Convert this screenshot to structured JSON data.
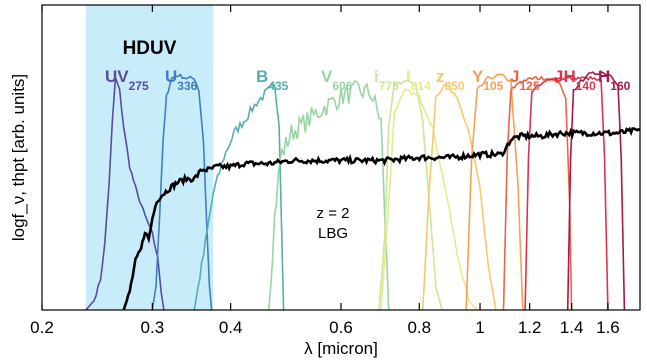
{
  "chart_data": {
    "type": "line",
    "xlabel": "λ [micron]",
    "ylabel": "logf_ν, thpt [arb. units]",
    "xscale": "log",
    "xlim": [
      0.2,
      1.8
    ],
    "ylim": [
      0,
      1
    ],
    "grid": false,
    "xticks": [
      {
        "value": 0.2,
        "label": "0.2"
      },
      {
        "value": 0.3,
        "label": "0.3"
      },
      {
        "value": 0.4,
        "label": "0.4"
      },
      {
        "value": 0.6,
        "label": "0.6"
      },
      {
        "value": 0.8,
        "label": "0.8"
      },
      {
        "value": 1.0,
        "label": "1"
      },
      {
        "value": 1.2,
        "label": "1.2"
      },
      {
        "value": 1.4,
        "label": "1.4"
      },
      {
        "value": 1.6,
        "label": "1.6"
      }
    ],
    "highlight_region": {
      "label": "HDUV",
      "x_range": [
        0.235,
        0.375
      ],
      "color": "#c8ecfa"
    },
    "filters": [
      {
        "label": "UV",
        "sub": "275",
        "color": "#5b4b9e",
        "curve": [
          [
            0.235,
            0.0
          ],
          [
            0.242,
            0.03
          ],
          [
            0.248,
            0.1
          ],
          [
            0.252,
            0.22
          ],
          [
            0.256,
            0.42
          ],
          [
            0.259,
            0.62
          ],
          [
            0.262,
            0.76
          ],
          [
            0.266,
            0.72
          ],
          [
            0.27,
            0.6
          ],
          [
            0.276,
            0.47
          ],
          [
            0.284,
            0.38
          ],
          [
            0.292,
            0.31
          ],
          [
            0.3,
            0.25
          ],
          [
            0.306,
            0.17
          ],
          [
            0.31,
            0.06
          ],
          [
            0.313,
            0.0
          ]
        ]
      },
      {
        "label": "U",
        "sub": "336",
        "color": "#3f7fbf",
        "curve": [
          [
            0.3,
            0.0
          ],
          [
            0.304,
            0.08
          ],
          [
            0.308,
            0.3
          ],
          [
            0.312,
            0.55
          ],
          [
            0.316,
            0.7
          ],
          [
            0.322,
            0.76
          ],
          [
            0.33,
            0.77
          ],
          [
            0.34,
            0.76
          ],
          [
            0.35,
            0.76
          ],
          [
            0.356,
            0.72
          ],
          [
            0.362,
            0.55
          ],
          [
            0.366,
            0.3
          ],
          [
            0.37,
            0.08
          ],
          [
            0.373,
            0.0
          ]
        ]
      },
      {
        "label": "B",
        "sub": "435",
        "color": "#55aeb0",
        "curve": [
          [
            0.35,
            0.0
          ],
          [
            0.362,
            0.18
          ],
          [
            0.375,
            0.38
          ],
          [
            0.39,
            0.5
          ],
          [
            0.405,
            0.58
          ],
          [
            0.42,
            0.62
          ],
          [
            0.44,
            0.68
          ],
          [
            0.46,
            0.72
          ],
          [
            0.47,
            0.73
          ],
          [
            0.478,
            0.62
          ],
          [
            0.482,
            0.3
          ],
          [
            0.486,
            0.0
          ]
        ]
      },
      {
        "label": "V",
        "sub": "606",
        "color": "#99d5a4",
        "curve": [
          [
            0.46,
            0.0
          ],
          [
            0.47,
            0.3
          ],
          [
            0.48,
            0.5
          ],
          [
            0.5,
            0.58
          ],
          [
            0.53,
            0.62
          ],
          [
            0.56,
            0.66
          ],
          [
            0.6,
            0.7
          ],
          [
            0.64,
            0.72
          ],
          [
            0.67,
            0.71
          ],
          [
            0.695,
            0.62
          ],
          [
            0.705,
            0.3
          ],
          [
            0.715,
            0.0
          ]
        ]
      },
      {
        "label": "i",
        "sub": "775",
        "color": "#c8e89a",
        "curve": [
          [
            0.69,
            0.0
          ],
          [
            0.705,
            0.25
          ],
          [
            0.715,
            0.6
          ],
          [
            0.73,
            0.74
          ],
          [
            0.76,
            0.75
          ],
          [
            0.79,
            0.74
          ],
          [
            0.81,
            0.62
          ],
          [
            0.83,
            0.35
          ],
          [
            0.85,
            0.08
          ],
          [
            0.87,
            0.0
          ]
        ]
      },
      {
        "label": "I",
        "sub": "814",
        "color": "#e7ea8c",
        "curve": [
          [
            0.695,
            0.0
          ],
          [
            0.715,
            0.35
          ],
          [
            0.73,
            0.65
          ],
          [
            0.76,
            0.72
          ],
          [
            0.8,
            0.7
          ],
          [
            0.84,
            0.6
          ],
          [
            0.88,
            0.4
          ],
          [
            0.92,
            0.18
          ],
          [
            0.96,
            0.03
          ],
          [
            0.99,
            0.0
          ]
        ]
      },
      {
        "label": "z",
        "sub": "850",
        "color": "#f6c96c",
        "curve": [
          [
            0.81,
            0.0
          ],
          [
            0.83,
            0.4
          ],
          [
            0.85,
            0.7
          ],
          [
            0.88,
            0.74
          ],
          [
            0.92,
            0.7
          ],
          [
            0.96,
            0.58
          ],
          [
            1.0,
            0.4
          ],
          [
            1.03,
            0.15
          ],
          [
            1.06,
            0.0
          ]
        ]
      },
      {
        "label": "Y",
        "sub": "105",
        "color": "#f1a25a",
        "curve": [
          [
            0.95,
            0.0
          ],
          [
            0.97,
            0.5
          ],
          [
            0.99,
            0.72
          ],
          [
            1.03,
            0.76
          ],
          [
            1.08,
            0.77
          ],
          [
            1.12,
            0.75
          ],
          [
            1.15,
            0.4
          ],
          [
            1.17,
            0.0
          ]
        ]
      },
      {
        "label": "J",
        "sub": "125",
        "color": "#e8674a",
        "curve": [
          [
            1.09,
            0.0
          ],
          [
            1.105,
            0.5
          ],
          [
            1.12,
            0.72
          ],
          [
            1.16,
            0.75
          ],
          [
            1.22,
            0.76
          ],
          [
            1.28,
            0.76
          ],
          [
            1.33,
            0.75
          ],
          [
            1.37,
            0.7
          ],
          [
            1.39,
            0.35
          ],
          [
            1.4,
            0.0
          ]
        ]
      },
      {
        "label": "JH",
        "sub": "140",
        "color": "#d7354f",
        "curve": [
          [
            1.18,
            0.0
          ],
          [
            1.195,
            0.5
          ],
          [
            1.21,
            0.72
          ],
          [
            1.3,
            0.76
          ],
          [
            1.4,
            0.76
          ],
          [
            1.5,
            0.76
          ],
          [
            1.56,
            0.75
          ],
          [
            1.58,
            0.5
          ],
          [
            1.6,
            0.0
          ]
        ]
      },
      {
        "label": "H",
        "sub": "160",
        "color": "#a8174e",
        "curve": [
          [
            1.38,
            0.0
          ],
          [
            1.395,
            0.5
          ],
          [
            1.41,
            0.72
          ],
          [
            1.48,
            0.77
          ],
          [
            1.56,
            0.78
          ],
          [
            1.62,
            0.77
          ],
          [
            1.66,
            0.74
          ],
          [
            1.68,
            0.5
          ],
          [
            1.7,
            0.0
          ]
        ]
      }
    ],
    "sed": {
      "annotation": [
        "z = 2",
        "LBG"
      ],
      "color": "#000000",
      "curve": [
        [
          0.27,
          0.0
        ],
        [
          0.276,
          0.06
        ],
        [
          0.282,
          0.16
        ],
        [
          0.288,
          0.2
        ],
        [
          0.292,
          0.26
        ],
        [
          0.296,
          0.23
        ],
        [
          0.3,
          0.3
        ],
        [
          0.305,
          0.36
        ],
        [
          0.312,
          0.38
        ],
        [
          0.32,
          0.4
        ],
        [
          0.33,
          0.42
        ],
        [
          0.34,
          0.43
        ],
        [
          0.35,
          0.43
        ],
        [
          0.36,
          0.46
        ],
        [
          0.37,
          0.46
        ],
        [
          0.38,
          0.47
        ],
        [
          0.4,
          0.47
        ],
        [
          0.42,
          0.48
        ],
        [
          0.46,
          0.48
        ],
        [
          0.5,
          0.49
        ],
        [
          0.6,
          0.49
        ],
        [
          0.7,
          0.49
        ],
        [
          0.8,
          0.5
        ],
        [
          0.9,
          0.5
        ],
        [
          1.0,
          0.51
        ],
        [
          1.08,
          0.51
        ],
        [
          1.1,
          0.53
        ],
        [
          1.12,
          0.56
        ],
        [
          1.16,
          0.57
        ],
        [
          1.25,
          0.57
        ],
        [
          1.35,
          0.58
        ],
        [
          1.45,
          0.58
        ],
        [
          1.55,
          0.58
        ],
        [
          1.65,
          0.58
        ],
        [
          1.8,
          0.59
        ]
      ]
    }
  }
}
